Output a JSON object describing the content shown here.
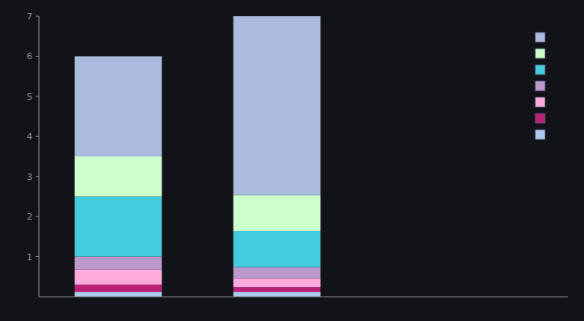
{
  "chart_data": {
    "type": "bar",
    "stacked": true,
    "categories": [
      null,
      null
    ],
    "series": [
      {
        "color": "#aaccee",
        "values": [
          0.12,
          0.12
        ]
      },
      {
        "color": "#bb2277",
        "values": [
          0.18,
          0.12
        ]
      },
      {
        "color": "#ffaadd",
        "values": [
          0.38,
          0.22
        ]
      },
      {
        "color": "#bb99cc",
        "values": [
          0.32,
          0.28
        ]
      },
      {
        "color": "#44ccdd",
        "values": [
          1.5,
          0.9
        ]
      },
      {
        "color": "#ccffcc",
        "values": [
          1.0,
          0.9
        ]
      },
      {
        "color": "#aabbdd",
        "values": [
          2.5,
          4.46
        ]
      }
    ],
    "ylim": [
      0,
      7
    ],
    "yticks": [
      1,
      2,
      3,
      4,
      5,
      6,
      7
    ],
    "grid": false,
    "legend": "upper right",
    "tick_labels": "y"
  }
}
